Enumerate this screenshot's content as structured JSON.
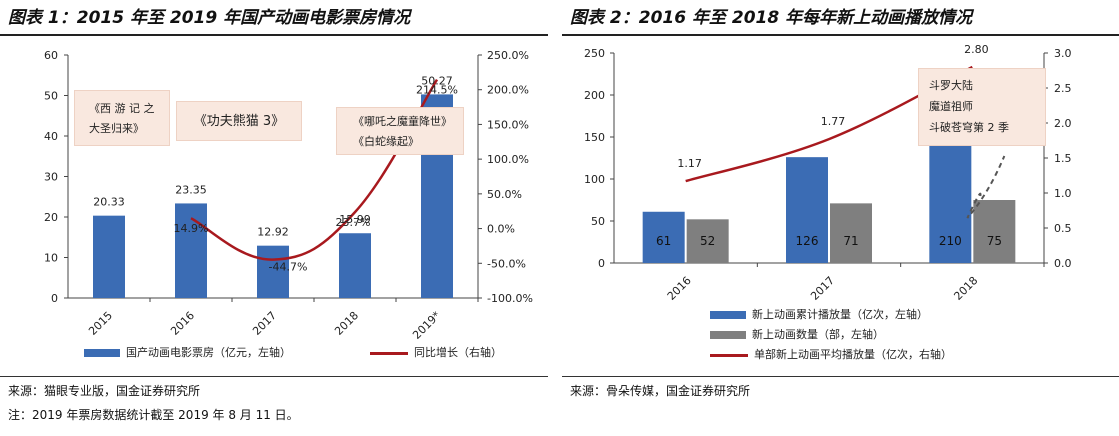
{
  "chart_data": [
    {
      "type": "bar",
      "title": "图表 1：2015 年至 2019 年国产动画电影票房情况",
      "categories": [
        "2015",
        "2016",
        "2017",
        "2018",
        "2019*"
      ],
      "series": [
        {
          "name": "国产动画电影票房（亿元，左轴）",
          "type": "bar",
          "axis": "left",
          "values": [
            20.33,
            23.35,
            12.92,
            15.99,
            50.27
          ]
        },
        {
          "name": "同比增长（右轴）",
          "type": "line",
          "axis": "right",
          "values": [
            null,
            14.9,
            -44.7,
            23.7,
            214.5
          ]
        }
      ],
      "bar_labels": [
        "20.33",
        "23.35",
        "12.92",
        "15.99",
        "50.27"
      ],
      "line_labels": [
        "",
        "14.9%",
        "-44.7%",
        "23.7%",
        "214.5%"
      ],
      "y_left": {
        "range": [
          0,
          60
        ],
        "ticks": [
          "0",
          "10",
          "20",
          "30",
          "40",
          "50",
          "60"
        ]
      },
      "y_right": {
        "range": [
          -100,
          250
        ],
        "ticks": [
          "-100.0%",
          "-50.0%",
          "0.0%",
          "50.0%",
          "100.0%",
          "150.0%",
          "200.0%",
          "250.0%"
        ]
      },
      "annotations": [
        {
          "lines": [
            "《西 游 记 之",
            "大圣归来》"
          ]
        },
        {
          "lines": [
            "《功夫熊猫 3》"
          ]
        },
        {
          "lines": [
            "《哪吒之魔童降世》",
            "《白蛇缘起》"
          ]
        }
      ],
      "colors": {
        "bar": "#3b6cb4",
        "line": "#a8191e"
      },
      "source": "来源：猫眼专业版，国金证券研究所",
      "note": "注：2019 年票房数据统计截至 2019 年 8 月 11 日。"
    },
    {
      "type": "bar",
      "title": "图表 2：2016 年至 2018 年每年新上动画播放情况",
      "categories": [
        "2016",
        "2017",
        "2018"
      ],
      "series": [
        {
          "name": "新上动画累计播放量（亿次，左轴）",
          "type": "bar",
          "axis": "left",
          "values": [
            61,
            126,
            210
          ]
        },
        {
          "name": "新上动画数量（部，左轴）",
          "type": "bar",
          "axis": "left",
          "values": [
            52,
            71,
            75
          ]
        },
        {
          "name": "单部新上动画平均播放量（亿次，右轴）",
          "type": "line",
          "axis": "right",
          "values": [
            1.17,
            1.77,
            2.8
          ]
        }
      ],
      "bar1_labels": [
        "61",
        "126",
        "210"
      ],
      "bar2_labels": [
        "52",
        "71",
        "75"
      ],
      "line_labels": [
        "1.17",
        "1.77",
        "2.80"
      ],
      "y_left": {
        "range": [
          0,
          250
        ],
        "ticks": [
          "0",
          "50",
          "100",
          "150",
          "200",
          "250"
        ]
      },
      "y_right": {
        "range": [
          0,
          3
        ],
        "ticks": [
          "0.0",
          "0.5",
          "1.0",
          "1.5",
          "2.0",
          "2.5",
          "3.0"
        ]
      },
      "annotations": [
        {
          "lines": [
            "斗罗大陆",
            "魔道祖师",
            "斗破苍穹第 2 季"
          ]
        }
      ],
      "colors": {
        "bar1": "#3b6cb4",
        "bar2": "#7f7f7f",
        "line": "#a8191e"
      },
      "source": "来源：骨朵传媒，国金证券研究所"
    }
  ]
}
